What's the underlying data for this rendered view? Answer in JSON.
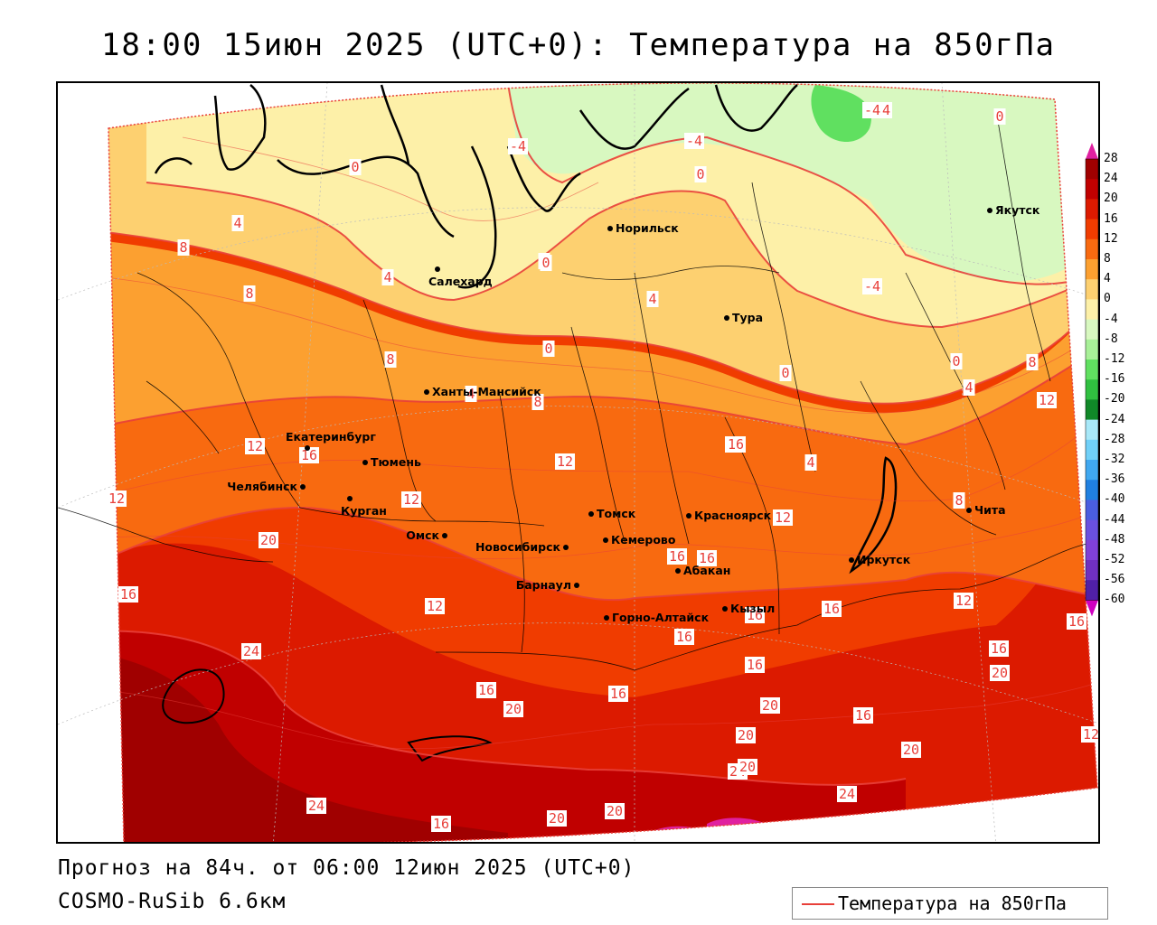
{
  "title": "18:00 15июн 2025 (UTC+0): Температура на 850гПа",
  "forecast_text": "Прогноз на 84ч. от 06:00 12июн 2025 (UTC+0)",
  "model_text": "COSMO-RuSib 6.6км",
  "legend": {
    "label": "Температура на 850гПа",
    "line_color": "#e8403a"
  },
  "colorbar": {
    "labels": [
      "28",
      "24",
      "20",
      "16",
      "12",
      "8",
      "4",
      "0",
      "-4",
      "-8",
      "-12",
      "-16",
      "-20",
      "-24",
      "-28",
      "-32",
      "-36",
      "-40",
      "-44",
      "-48",
      "-52",
      "-56",
      "-60"
    ],
    "colors": [
      "#a00000",
      "#c00000",
      "#dc1a00",
      "#f03c00",
      "#f86a10",
      "#fca030",
      "#fdd070",
      "#fdf0a8",
      "#d8f8c0",
      "#a8f098",
      "#60e060",
      "#30c040",
      "#108828",
      "#a8e8f8",
      "#70d0f8",
      "#40a8f0",
      "#2080e0",
      "#4a5ee0",
      "#6a50e0",
      "#8040d8",
      "#7030c0",
      "#5020a8"
    ],
    "top_color": "#e020a0",
    "bottom_color": "#d000c0"
  },
  "cities": [
    {
      "name": "Норильск"
    },
    {
      "name": "Якутск"
    },
    {
      "name": "Салехард"
    },
    {
      "name": "Тура"
    },
    {
      "name": "Ханты-Мансийск"
    },
    {
      "name": "Екатеринбург"
    },
    {
      "name": "Тюмень"
    },
    {
      "name": "Челябинск"
    },
    {
      "name": "Курган"
    },
    {
      "name": "Омск"
    },
    {
      "name": "Новосибирск"
    },
    {
      "name": "Томск"
    },
    {
      "name": "Кемерово"
    },
    {
      "name": "Красноярск"
    },
    {
      "name": "Барнаул"
    },
    {
      "name": "Абакан"
    },
    {
      "name": "Иркутск"
    },
    {
      "name": "Чита"
    },
    {
      "name": "Горно-Алтайск"
    },
    {
      "name": "Кызыл"
    }
  ],
  "isotherm_labels": [
    "0",
    "-4",
    "-4",
    "0",
    "0",
    "-4",
    "4",
    "4",
    "8",
    "8",
    "4",
    "0",
    "4",
    "-4",
    "0",
    "8",
    "4",
    "8",
    "8",
    "12",
    "4",
    "12",
    "16",
    "12",
    "12",
    "8",
    "0",
    "12",
    "20",
    "16",
    "12",
    "16",
    "16",
    "12",
    "16",
    "24",
    "16",
    "20",
    "16",
    "16",
    "12",
    "16",
    "20",
    "16",
    "20",
    "20",
    "20",
    "24",
    "16",
    "12",
    "20",
    "20",
    "24",
    "24",
    "0",
    "16",
    "20",
    "16",
    "-4",
    "0",
    "12",
    "16",
    "16"
  ]
}
